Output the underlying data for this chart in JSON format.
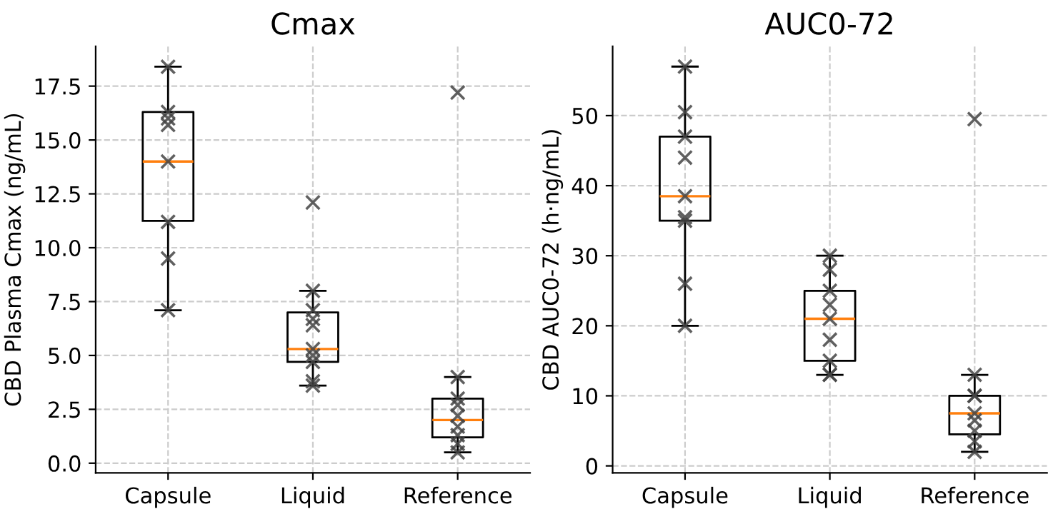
{
  "chart_data": [
    {
      "type": "box",
      "title": "Cmax",
      "ylabel": "CBD Plasma Cmax (ng/mL)",
      "categories": [
        "Capsule",
        "Liquid",
        "Reference"
      ],
      "boxes": [
        {
          "low": 7.1,
          "q1": 11.25,
          "median": 14.0,
          "q3": 16.3,
          "high": 18.4
        },
        {
          "low": 3.6,
          "q1": 4.7,
          "median": 5.3,
          "q3": 7.0,
          "high": 8.0
        },
        {
          "low": 0.5,
          "q1": 1.2,
          "median": 2.0,
          "q3": 3.0,
          "high": 4.0
        }
      ],
      "series": [
        {
          "type": "scatter",
          "color": "#444444",
          "marker": "cross",
          "x": [
            "Capsule",
            "Capsule",
            "Capsule",
            "Capsule",
            "Capsule",
            "Capsule",
            "Capsule",
            "Capsule",
            "Liquid",
            "Liquid",
            "Liquid",
            "Liquid",
            "Liquid",
            "Liquid",
            "Liquid",
            "Liquid",
            "Liquid",
            "Liquid",
            "Reference",
            "Reference",
            "Reference",
            "Reference",
            "Reference",
            "Reference",
            "Reference",
            "Reference",
            "Reference"
          ],
          "values": [
            18.4,
            16.3,
            16.0,
            15.7,
            14.0,
            11.2,
            9.5,
            7.1,
            12.1,
            8.0,
            7.1,
            6.7,
            6.4,
            5.3,
            5.0,
            4.7,
            3.8,
            3.6,
            17.2,
            4.0,
            3.0,
            2.7,
            2.2,
            1.7,
            1.3,
            0.9,
            0.5
          ]
        }
      ],
      "ylim": [
        -0.45,
        19.35
      ],
      "yticks": [
        {
          "value": 0,
          "label": "0.0"
        },
        2.5,
        {
          "value": 5,
          "label": "5.0"
        },
        7.5,
        {
          "value": 10,
          "label": "10.0"
        },
        12.5,
        {
          "value": 15,
          "label": "15.0"
        },
        17.5
      ],
      "grid": true
    },
    {
      "type": "box",
      "title": "AUC0-72",
      "ylabel": "CBD AUC0-72 (h·ng/mL)",
      "categories": [
        "Capsule",
        "Liquid",
        "Reference"
      ],
      "boxes": [
        {
          "low": 20,
          "q1": 35,
          "median": 38.5,
          "q3": 47,
          "high": 57
        },
        {
          "low": 13,
          "q1": 15,
          "median": 21,
          "q3": 25,
          "high": 30
        },
        {
          "low": 2,
          "q1": 4.5,
          "median": 7.5,
          "q3": 10,
          "high": 13
        }
      ],
      "series": [
        {
          "type": "scatter",
          "color": "#444444",
          "marker": "cross",
          "x": [
            "Capsule",
            "Capsule",
            "Capsule",
            "Capsule",
            "Capsule",
            "Capsule",
            "Capsule",
            "Capsule",
            "Capsule",
            "Liquid",
            "Liquid",
            "Liquid",
            "Liquid",
            "Liquid",
            "Liquid",
            "Liquid",
            "Liquid",
            "Liquid",
            "Reference",
            "Reference",
            "Reference",
            "Reference",
            "Reference",
            "Reference",
            "Reference",
            "Reference",
            "Reference"
          ],
          "values": [
            57,
            50.5,
            47,
            44,
            38.5,
            35.5,
            35,
            26,
            20,
            30,
            28,
            25,
            23,
            21,
            18,
            15,
            13,
            13,
            49.5,
            13,
            10,
            10,
            7.5,
            6.5,
            5,
            3.5,
            2
          ]
        }
      ],
      "ylim": [
        -1,
        59.9
      ],
      "yticks": [
        0,
        10,
        20,
        30,
        40,
        50
      ],
      "grid": true
    }
  ]
}
